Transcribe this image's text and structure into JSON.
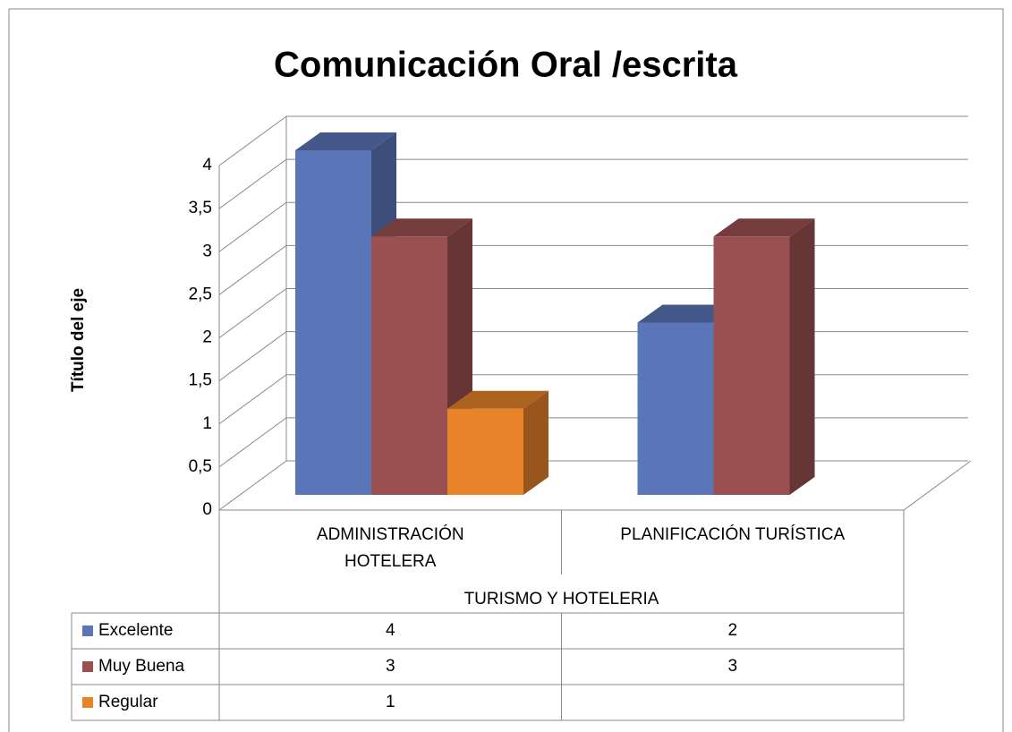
{
  "chart_data": {
    "type": "bar3d",
    "title": "Comunicación Oral /escrita",
    "y_axis_label": "Título del eje",
    "group_label": "TURISMO Y HOTELERIA",
    "categories": [
      "ADMINISTRACIÓN HOTELERA",
      "PLANIFICACIÓN TURÍSTICA"
    ],
    "series": [
      {
        "name": "Excelente",
        "color": "#5b76b8",
        "values": [
          4,
          2
        ]
      },
      {
        "name": "Muy Buena",
        "color": "#9a5050",
        "values": [
          3,
          3
        ]
      },
      {
        "name": "Regular",
        "color": "#e8832a",
        "values": [
          1,
          null
        ]
      }
    ],
    "ylim": [
      0,
      4
    ],
    "yticks": [
      0,
      {
        "value": 0.5,
        "label": "0,5"
      },
      1,
      {
        "value": 1.5,
        "label": "1,5"
      },
      2,
      {
        "value": 2.5,
        "label": "2,5"
      },
      3,
      {
        "value": 3.5,
        "label": "3,5"
      },
      4
    ],
    "grid": true,
    "data_table": true
  }
}
